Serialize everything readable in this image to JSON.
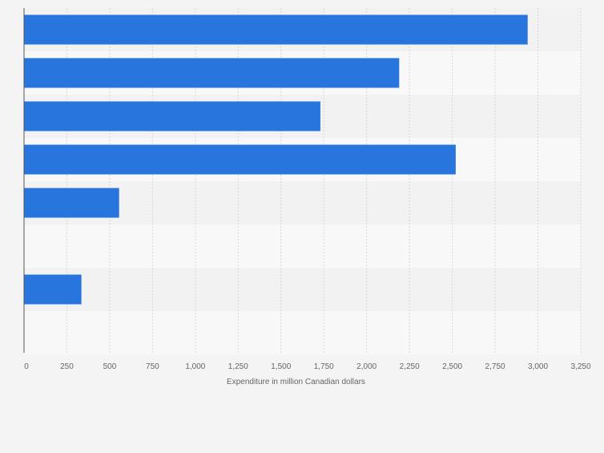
{
  "chart_data": {
    "type": "bar",
    "orientation": "horizontal",
    "title": "",
    "xlabel": "Expenditure in million Canadian dollars",
    "ylabel": "",
    "categories": [
      "",
      "",
      "",
      "",
      "",
      "",
      "",
      ""
    ],
    "values": [
      2940,
      2190,
      1730,
      2520,
      555,
      0,
      335,
      0
    ],
    "xlim": [
      0,
      3250
    ],
    "xticks": [
      0,
      250,
      500,
      750,
      1000,
      1250,
      1500,
      1750,
      2000,
      2250,
      2500,
      2750,
      3000,
      3250
    ],
    "xtick_labels": [
      "0",
      "250",
      "500",
      "750",
      "1,000",
      "1,250",
      "1,500",
      "1,750",
      "2,000",
      "2,250",
      "2,500",
      "2,750",
      "3,000",
      "3,250"
    ],
    "grid": true,
    "legend": "none",
    "colors": {
      "bar": "#2876dd",
      "band_dark": "#f2f2f2",
      "band_light": "#f8f8f8",
      "grid": "#d6d6d6",
      "axis": "#555555",
      "tick_text": "#666666",
      "background": "#f4f4f4"
    }
  }
}
